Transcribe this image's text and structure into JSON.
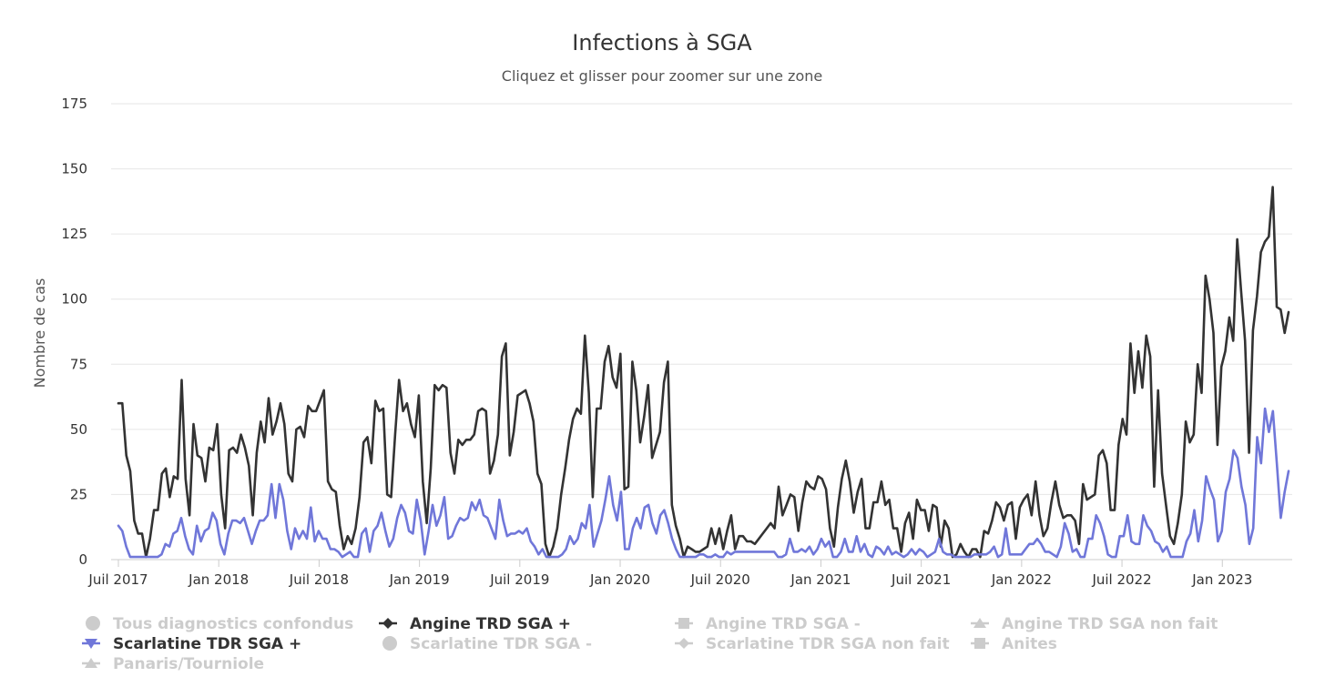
{
  "chart_data": {
    "type": "line",
    "title": "Infections à SGA",
    "subtitle": "Cliquez et glisser pour zoomer sur une zone",
    "ylabel": "Nombre de cas",
    "ylim": [
      0,
      175
    ],
    "yticks": [
      0,
      25,
      50,
      75,
      100,
      125,
      150,
      175
    ],
    "x_start": 2017.5,
    "x_end": 2023.33,
    "xticks": [
      {
        "label": "Juil 2017",
        "value": 2017.5
      },
      {
        "label": "Jan 2018",
        "value": 2018.0
      },
      {
        "label": "Juil 2018",
        "value": 2018.5
      },
      {
        "label": "Jan 2019",
        "value": 2019.0
      },
      {
        "label": "Juil 2019",
        "value": 2019.5
      },
      {
        "label": "Jan 2020",
        "value": 2020.0
      },
      {
        "label": "Juil 2020",
        "value": 2020.5
      },
      {
        "label": "Jan 2021",
        "value": 2021.0
      },
      {
        "label": "Juil 2021",
        "value": 2021.5
      },
      {
        "label": "Jan 2022",
        "value": 2022.0
      },
      {
        "label": "Juil 2022",
        "value": 2022.5
      },
      {
        "label": "Jan 2023",
        "value": 2023.0
      }
    ],
    "series": [
      {
        "name": "Angine TRD SGA +",
        "color": "#333333",
        "marker": "diamond",
        "values": [
          60,
          60,
          40,
          34,
          15,
          10,
          10,
          1,
          8,
          19,
          19,
          33,
          35,
          24,
          32,
          31,
          69,
          31,
          17,
          52,
          40,
          39,
          30,
          43,
          42,
          52,
          25,
          12,
          42,
          43,
          41,
          48,
          43,
          36,
          17,
          41,
          53,
          45,
          62,
          48,
          53,
          60,
          52,
          33,
          30,
          50,
          51,
          47,
          59,
          57,
          57,
          61,
          65,
          30,
          27,
          26,
          13,
          4,
          9,
          6,
          12,
          24,
          45,
          47,
          37,
          61,
          57,
          58,
          25,
          24,
          48,
          69,
          57,
          60,
          52,
          47,
          63,
          30,
          14,
          35,
          67,
          65,
          67,
          66,
          41,
          33,
          46,
          44,
          46,
          46,
          48,
          57,
          58,
          57,
          33,
          38,
          48,
          78,
          83,
          40,
          49,
          63,
          64,
          65,
          60,
          53,
          33,
          29,
          6,
          1,
          5,
          12,
          25,
          35,
          46,
          54,
          58,
          56,
          86,
          64,
          24,
          58,
          58,
          76,
          82,
          70,
          66,
          79,
          27,
          28,
          76,
          65,
          45,
          55,
          67,
          39,
          44,
          49,
          68,
          76,
          21,
          13,
          8,
          1,
          5,
          4,
          3,
          3,
          4,
          5,
          12,
          6,
          12,
          4,
          11,
          17,
          4,
          9,
          9,
          7,
          7,
          6,
          8,
          10,
          12,
          14,
          12,
          28,
          17,
          21,
          25,
          24,
          11,
          22,
          30,
          28,
          27,
          32,
          31,
          27,
          12,
          5,
          20,
          31,
          38,
          30,
          18,
          26,
          31,
          12,
          12,
          22,
          22,
          30,
          21,
          23,
          12,
          12,
          3,
          14,
          18,
          8,
          23,
          19,
          19,
          11,
          21,
          20,
          5,
          15,
          12,
          1,
          2,
          6,
          3,
          1,
          4,
          4,
          1,
          11,
          10,
          15,
          22,
          20,
          15,
          21,
          22,
          8,
          20,
          23,
          25,
          17,
          30,
          17,
          9,
          12,
          22,
          30,
          21,
          16,
          17,
          17,
          15,
          6,
          29,
          23,
          24,
          25,
          40,
          42,
          37,
          19,
          19,
          44,
          54,
          48,
          83,
          64,
          80,
          66,
          86,
          78,
          28,
          65,
          33,
          21,
          9,
          6,
          14,
          25,
          53,
          45,
          48,
          75,
          64,
          109,
          100,
          87,
          44,
          74,
          80,
          93,
          84,
          123,
          103,
          84,
          41,
          88,
          101,
          118,
          122,
          124,
          143,
          97,
          96,
          87,
          95
        ]
      },
      {
        "name": "Scarlatine TDR SGA +",
        "color": "#7077d9",
        "marker": "triangle-down",
        "values": [
          13,
          11,
          5,
          1,
          1,
          1,
          1,
          1,
          1,
          1,
          1,
          2,
          6,
          5,
          10,
          11,
          16,
          9,
          4,
          2,
          13,
          7,
          11,
          12,
          18,
          15,
          6,
          2,
          10,
          15,
          15,
          14,
          16,
          11,
          6,
          11,
          15,
          15,
          17,
          29,
          16,
          29,
          23,
          11,
          4,
          12,
          8,
          11,
          8,
          20,
          7,
          11,
          8,
          8,
          4,
          4,
          3,
          1,
          2,
          3,
          1,
          1,
          10,
          12,
          3,
          11,
          13,
          18,
          11,
          5,
          8,
          16,
          21,
          18,
          11,
          10,
          23,
          15,
          2,
          11,
          21,
          13,
          17,
          24,
          8,
          9,
          13,
          16,
          15,
          16,
          22,
          19,
          23,
          17,
          16,
          12,
          8,
          23,
          15,
          9,
          10,
          10,
          11,
          10,
          12,
          7,
          5,
          2,
          4,
          1,
          1,
          1,
          1,
          2,
          4,
          9,
          6,
          8,
          14,
          12,
          21,
          5,
          10,
          15,
          23,
          32,
          21,
          15,
          26,
          4,
          4,
          12,
          16,
          12,
          20,
          21,
          14,
          10,
          17,
          19,
          14,
          8,
          4,
          1,
          1,
          1,
          1,
          1,
          2,
          2,
          1,
          1,
          2,
          1,
          1,
          3,
          2,
          3,
          3,
          3,
          3,
          3,
          3,
          3,
          3,
          3,
          3,
          3,
          1,
          1,
          2,
          8,
          3,
          3,
          4,
          3,
          5,
          2,
          4,
          8,
          5,
          7,
          1,
          1,
          3,
          8,
          3,
          3,
          9,
          3,
          6,
          2,
          1,
          5,
          4,
          2,
          5,
          2,
          3,
          2,
          1,
          2,
          4,
          2,
          4,
          3,
          1,
          2,
          3,
          8,
          3,
          2,
          2,
          1,
          1,
          1,
          1,
          1,
          2,
          2,
          2,
          2,
          3,
          5,
          1,
          2,
          12,
          2,
          2,
          2,
          2,
          4,
          6,
          6,
          8,
          6,
          3,
          3,
          2,
          1,
          5,
          14,
          10,
          3,
          4,
          1,
          1,
          8,
          8,
          17,
          14,
          9,
          2,
          1,
          1,
          9,
          9,
          17,
          7,
          6,
          6,
          17,
          13,
          11,
          7,
          6,
          3,
          5,
          1,
          1,
          1,
          1,
          7,
          10,
          19,
          7,
          15,
          32,
          27,
          23,
          7,
          11,
          26,
          31,
          42,
          39,
          28,
          21,
          6,
          12,
          47,
          37,
          58,
          49,
          57,
          37,
          16,
          26,
          34
        ]
      }
    ],
    "legend": [
      {
        "name": "Tous diagnostics confondus",
        "symbol": "circle",
        "active": false
      },
      {
        "name": "Angine TRD SGA +",
        "symbol": "diamond",
        "active": true,
        "color": "#333333"
      },
      {
        "name": "Angine TRD SGA -",
        "symbol": "square",
        "active": false
      },
      {
        "name": "Angine TRD SGA non fait",
        "symbol": "triangle",
        "active": false
      },
      {
        "name": "Scarlatine TDR SGA +",
        "symbol": "triangle-down",
        "active": true,
        "color": "#7077d9"
      },
      {
        "name": "Scarlatine TDR SGA -",
        "symbol": "circle",
        "active": false
      },
      {
        "name": "Scarlatine TDR SGA non fait",
        "symbol": "diamond",
        "active": false
      },
      {
        "name": "Anites",
        "symbol": "square",
        "active": false
      },
      {
        "name": "Panaris/Tourniole",
        "symbol": "triangle",
        "active": false
      }
    ]
  }
}
